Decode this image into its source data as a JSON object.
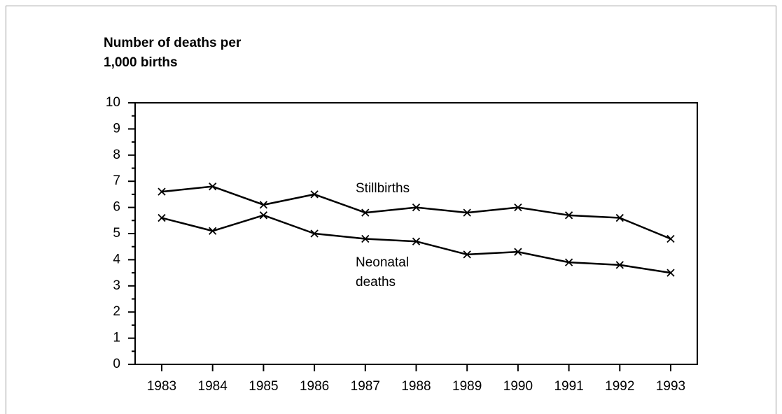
{
  "chart_data": {
    "type": "line",
    "ylabel": "Number of deaths per 1,000 births",
    "categories": [
      "1983",
      "1984",
      "1985",
      "1986",
      "1987",
      "1988",
      "1989",
      "1990",
      "1991",
      "1992",
      "1993"
    ],
    "series": [
      {
        "name": "Stillbirths",
        "color": "#000000",
        "values": [
          6.6,
          6.8,
          6.1,
          6.5,
          5.8,
          6.0,
          5.8,
          6.0,
          5.7,
          5.6,
          4.8
        ]
      },
      {
        "name": "Neonatal deaths",
        "color": "#000000",
        "values": [
          5.6,
          5.1,
          5.7,
          5.0,
          4.8,
          4.7,
          4.2,
          4.3,
          3.9,
          3.8,
          3.5
        ]
      }
    ],
    "ylim": [
      0,
      10
    ],
    "yticks": [
      0,
      1,
      2,
      3,
      4,
      5,
      6,
      7,
      8,
      9,
      10
    ],
    "marker": "x"
  }
}
